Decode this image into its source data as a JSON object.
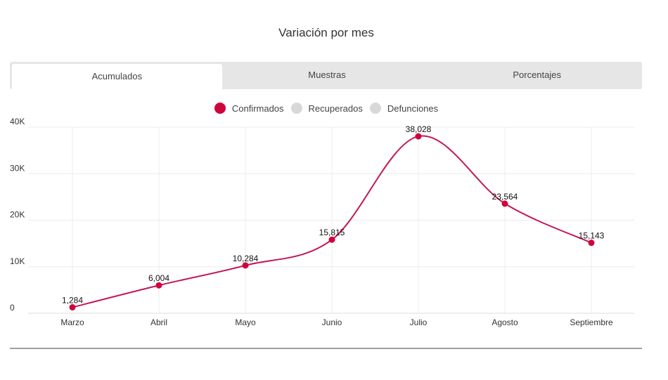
{
  "title": "Variación por mes",
  "tabs": [
    {
      "label": "Acumulados",
      "active": true
    },
    {
      "label": "Muestras"
    },
    {
      "label": "Porcentajes"
    }
  ],
  "legend": [
    {
      "label": "Confirmados",
      "color": "#d0043c",
      "active": true
    },
    {
      "label": "Recuperados",
      "color": "#d8d8d8"
    },
    {
      "label": "Defunciones",
      "color": "#d8d8d8"
    }
  ],
  "chart_data": {
    "type": "line",
    "categories": [
      "Marzo",
      "Abril",
      "Mayo",
      "Junio",
      "Julio",
      "Agosto",
      "Septiembre"
    ],
    "series": [
      {
        "name": "Confirmados",
        "color": "#c2185b",
        "values": [
          1284,
          6004,
          10284,
          15815,
          38028,
          23564,
          15143
        ],
        "labels": [
          "1,284",
          "6,004",
          "10,284",
          "15,815",
          "38,028",
          "23,564",
          "15,143"
        ]
      }
    ],
    "yticks": [
      "0",
      "10K",
      "20K",
      "30K",
      "40K"
    ],
    "ylim": [
      0,
      40000
    ],
    "grid": true,
    "legend": "top"
  }
}
